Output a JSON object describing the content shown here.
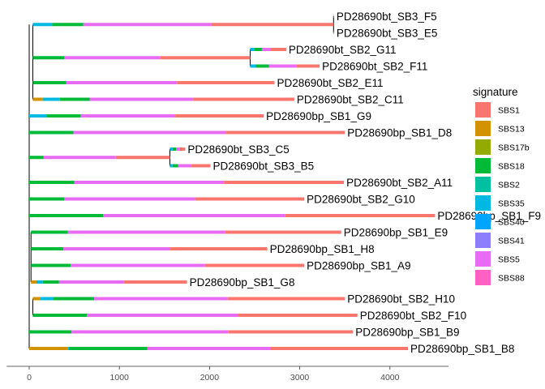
{
  "chart_data": {
    "type": "bar",
    "subtype": "phylogenetic-tree-with-stacked-signature-branches",
    "title": "",
    "xlabel": "",
    "ylabel": "",
    "xlim": [
      -250,
      4650
    ],
    "x_ticks": [
      0,
      1000,
      2000,
      3000,
      4000
    ],
    "grid": false,
    "legend": {
      "title": "signature",
      "position": "right",
      "entries": [
        {
          "name": "SBS1",
          "color": "#F8766D"
        },
        {
          "name": "SBS13",
          "color": "#D39200"
        },
        {
          "name": "SBS17b",
          "color": "#93AA00"
        },
        {
          "name": "SBS18",
          "color": "#00BA38"
        },
        {
          "name": "SBS2",
          "color": "#00C19F"
        },
        {
          "name": "SBS35",
          "color": "#00B9E3"
        },
        {
          "name": "SBS40",
          "color": "#00A5FF"
        },
        {
          "name": "SBS41",
          "color": "#8C7EFF"
        },
        {
          "name": "SBS5",
          "color": "#E76BF3"
        },
        {
          "name": "SBS88",
          "color": "#FF61C3"
        }
      ]
    },
    "tips": [
      {
        "name": "PD28690bt_SB3_F5",
        "row": 1
      },
      {
        "name": "PD28690bt_SB3_E5",
        "row": 2
      },
      {
        "name": "PD28690bt_SB2_G11",
        "row": 3
      },
      {
        "name": "PD28690bt_SB2_F11",
        "row": 4
      },
      {
        "name": "PD28690bt_SB2_E11",
        "row": 5
      },
      {
        "name": "PD28690bt_SB2_C11",
        "row": 6
      },
      {
        "name": "PD28690bp_SB1_G9",
        "row": 7
      },
      {
        "name": "PD28690bp_SB1_D8",
        "row": 8
      },
      {
        "name": "PD28690bt_SB3_C5",
        "row": 9
      },
      {
        "name": "PD28690bt_SB3_B5",
        "row": 10
      },
      {
        "name": "PD28690bt_SB2_A11",
        "row": 11
      },
      {
        "name": "PD28690bt_SB2_G10",
        "row": 12
      },
      {
        "name": "PD28690bp_SB1_F9",
        "row": 13
      },
      {
        "name": "PD28690bp_SB1_E9",
        "row": 14
      },
      {
        "name": "PD28690bp_SB1_H8",
        "row": 15
      },
      {
        "name": "PD28690bp_SB1_A9",
        "row": 16
      },
      {
        "name": "PD28690bp_SB1_G8",
        "row": 17
      },
      {
        "name": "PD28690bt_SB2_H10",
        "row": 18
      },
      {
        "name": "PD28690bt_SB2_F10",
        "row": 19
      },
      {
        "name": "PD28690bp_SB1_B9",
        "row": 20
      },
      {
        "name": "PD28690bp_SB1_B8",
        "row": 21
      }
    ],
    "branches": [
      {
        "id": "b_sb3_trunk",
        "row": 1.5,
        "start": 40,
        "segments": [
          {
            "signature": "SBS35",
            "value": 215
          },
          {
            "signature": "SBS18",
            "value": 345
          },
          {
            "signature": "SBS5",
            "value": 1420
          },
          {
            "signature": "SBS1",
            "value": 1355
          }
        ]
      },
      {
        "id": "b_F5",
        "row": 1,
        "start": 3375,
        "segments": [
          {
            "signature": "SBS1",
            "value": 5
          }
        ]
      },
      {
        "id": "b_E5",
        "row": 2,
        "start": 3375,
        "segments": [
          {
            "signature": "SBS1",
            "value": 5
          }
        ]
      },
      {
        "id": "b_sb2_11_trunk",
        "row": 3.5,
        "start": 40,
        "segments": [
          {
            "signature": "SBS18",
            "value": 350
          },
          {
            "signature": "SBS5",
            "value": 1060
          },
          {
            "signature": "SBS1",
            "value": 1000
          }
        ]
      },
      {
        "id": "b_G11",
        "row": 3,
        "start": 2450,
        "segments": [
          {
            "signature": "SBS35",
            "value": 50
          },
          {
            "signature": "SBS18",
            "value": 80
          },
          {
            "signature": "SBS5",
            "value": 100
          },
          {
            "signature": "SBS1",
            "value": 170
          }
        ]
      },
      {
        "id": "b_F11",
        "row": 4,
        "start": 2450,
        "segments": [
          {
            "signature": "SBS35",
            "value": 60
          },
          {
            "signature": "SBS18",
            "value": 150
          },
          {
            "signature": "SBS5",
            "value": 300
          },
          {
            "signature": "SBS1",
            "value": 260
          }
        ]
      },
      {
        "id": "b_E11",
        "row": 5,
        "start": 40,
        "segments": [
          {
            "signature": "SBS18",
            "value": 370
          },
          {
            "signature": "SBS5",
            "value": 1230
          },
          {
            "signature": "SBS1",
            "value": 1080
          }
        ]
      },
      {
        "id": "b_C11",
        "row": 6,
        "start": 40,
        "segments": [
          {
            "signature": "SBS13",
            "value": 110
          },
          {
            "signature": "SBS35",
            "value": 190
          },
          {
            "signature": "SBS18",
            "value": 330
          },
          {
            "signature": "SBS5",
            "value": 1150
          },
          {
            "signature": "SBS1",
            "value": 1120
          }
        ]
      },
      {
        "id": "b_G9",
        "row": 7,
        "start": 0,
        "segments": [
          {
            "signature": "SBS35",
            "value": 190
          },
          {
            "signature": "SBS18",
            "value": 380
          },
          {
            "signature": "SBS5",
            "value": 1050
          },
          {
            "signature": "SBS1",
            "value": 980
          }
        ]
      },
      {
        "id": "b_D8",
        "row": 8,
        "start": 0,
        "segments": [
          {
            "signature": "SBS18",
            "value": 490
          },
          {
            "signature": "SBS5",
            "value": 1690
          },
          {
            "signature": "SBS1",
            "value": 1320
          }
        ]
      },
      {
        "id": "b_sb3_cb_trunk",
        "row": 9.5,
        "start": 0,
        "segments": [
          {
            "signature": "SBS18",
            "value": 160
          },
          {
            "signature": "SBS5",
            "value": 800
          },
          {
            "signature": "SBS1",
            "value": 600
          }
        ]
      },
      {
        "id": "b_C5",
        "row": 9,
        "start": 1560,
        "segments": [
          {
            "signature": "SBS35",
            "value": 30
          },
          {
            "signature": "SBS18",
            "value": 40
          },
          {
            "signature": "SBS5",
            "value": 40
          },
          {
            "signature": "SBS1",
            "value": 60
          }
        ]
      },
      {
        "id": "b_B5",
        "row": 10,
        "start": 1560,
        "segments": [
          {
            "signature": "SBS35",
            "value": 30
          },
          {
            "signature": "SBS18",
            "value": 60
          },
          {
            "signature": "SBS5",
            "value": 150
          },
          {
            "signature": "SBS1",
            "value": 210
          }
        ]
      },
      {
        "id": "b_A11",
        "row": 11,
        "start": 0,
        "segments": [
          {
            "signature": "SBS18",
            "value": 500
          },
          {
            "signature": "SBS5",
            "value": 1660
          },
          {
            "signature": "SBS1",
            "value": 1330
          }
        ]
      },
      {
        "id": "b_G10",
        "row": 12,
        "start": 0,
        "segments": [
          {
            "signature": "SBS18",
            "value": 390
          },
          {
            "signature": "SBS5",
            "value": 1450
          },
          {
            "signature": "SBS1",
            "value": 1210
          }
        ]
      },
      {
        "id": "b_F9",
        "row": 13,
        "start": 0,
        "segments": [
          {
            "signature": "SBS18",
            "value": 820
          },
          {
            "signature": "SBS5",
            "value": 2020
          },
          {
            "signature": "SBS1",
            "value": 1660
          }
        ]
      },
      {
        "id": "b_E9",
        "row": 14,
        "start": 20,
        "segments": [
          {
            "signature": "SBS18",
            "value": 410
          },
          {
            "signature": "SBS5",
            "value": 1740
          },
          {
            "signature": "SBS1",
            "value": 1290
          }
        ]
      },
      {
        "id": "b_H8",
        "row": 15,
        "start": 20,
        "segments": [
          {
            "signature": "SBS18",
            "value": 360
          },
          {
            "signature": "SBS5",
            "value": 1180
          },
          {
            "signature": "SBS1",
            "value": 1080
          }
        ]
      },
      {
        "id": "b_A9",
        "row": 16,
        "start": 20,
        "segments": [
          {
            "signature": "SBS18",
            "value": 440
          },
          {
            "signature": "SBS5",
            "value": 1490
          },
          {
            "signature": "SBS1",
            "value": 1100
          }
        ]
      },
      {
        "id": "b_G8",
        "row": 17,
        "start": 20,
        "segments": [
          {
            "signature": "SBS13",
            "value": 60
          },
          {
            "signature": "SBS35",
            "value": 70
          },
          {
            "signature": "SBS18",
            "value": 180
          },
          {
            "signature": "SBS5",
            "value": 720
          },
          {
            "signature": "SBS1",
            "value": 700
          }
        ]
      },
      {
        "id": "b_H10",
        "row": 18,
        "start": 40,
        "segments": [
          {
            "signature": "SBS13",
            "value": 80
          },
          {
            "signature": "SBS35",
            "value": 150
          },
          {
            "signature": "SBS18",
            "value": 450
          },
          {
            "signature": "SBS5",
            "value": 1480
          },
          {
            "signature": "SBS1",
            "value": 1300
          }
        ]
      },
      {
        "id": "b_F10",
        "row": 19,
        "start": 40,
        "segments": [
          {
            "signature": "SBS18",
            "value": 600
          },
          {
            "signature": "SBS5",
            "value": 1680
          },
          {
            "signature": "SBS1",
            "value": 1320
          }
        ]
      },
      {
        "id": "b_B9",
        "row": 20,
        "start": 0,
        "segments": [
          {
            "signature": "SBS18",
            "value": 470
          },
          {
            "signature": "SBS5",
            "value": 1740
          },
          {
            "signature": "SBS1",
            "value": 1380
          }
        ]
      },
      {
        "id": "b_B8",
        "row": 21,
        "start": 0,
        "segments": [
          {
            "signature": "SBS13",
            "value": 430
          },
          {
            "signature": "SBS35",
            "value": 10
          },
          {
            "signature": "SBS18",
            "value": 870
          },
          {
            "signature": "SBS5",
            "value": 1370
          },
          {
            "signature": "SBS1",
            "value": 1520
          }
        ]
      }
    ],
    "connectors": [
      {
        "x": 0,
        "rows": [
          1.5,
          21
        ]
      },
      {
        "x": 40,
        "rows": [
          1.5,
          3.5
        ]
      },
      {
        "x": 40,
        "rows": [
          3.5,
          6
        ]
      },
      {
        "x": 3375,
        "rows": [
          1,
          2
        ]
      },
      {
        "x": 2450,
        "rows": [
          3,
          4
        ]
      },
      {
        "x": 1560,
        "rows": [
          9,
          10
        ]
      },
      {
        "x": 20,
        "rows": [
          14,
          17
        ]
      },
      {
        "x": 40,
        "rows": [
          18,
          19
        ]
      }
    ]
  }
}
